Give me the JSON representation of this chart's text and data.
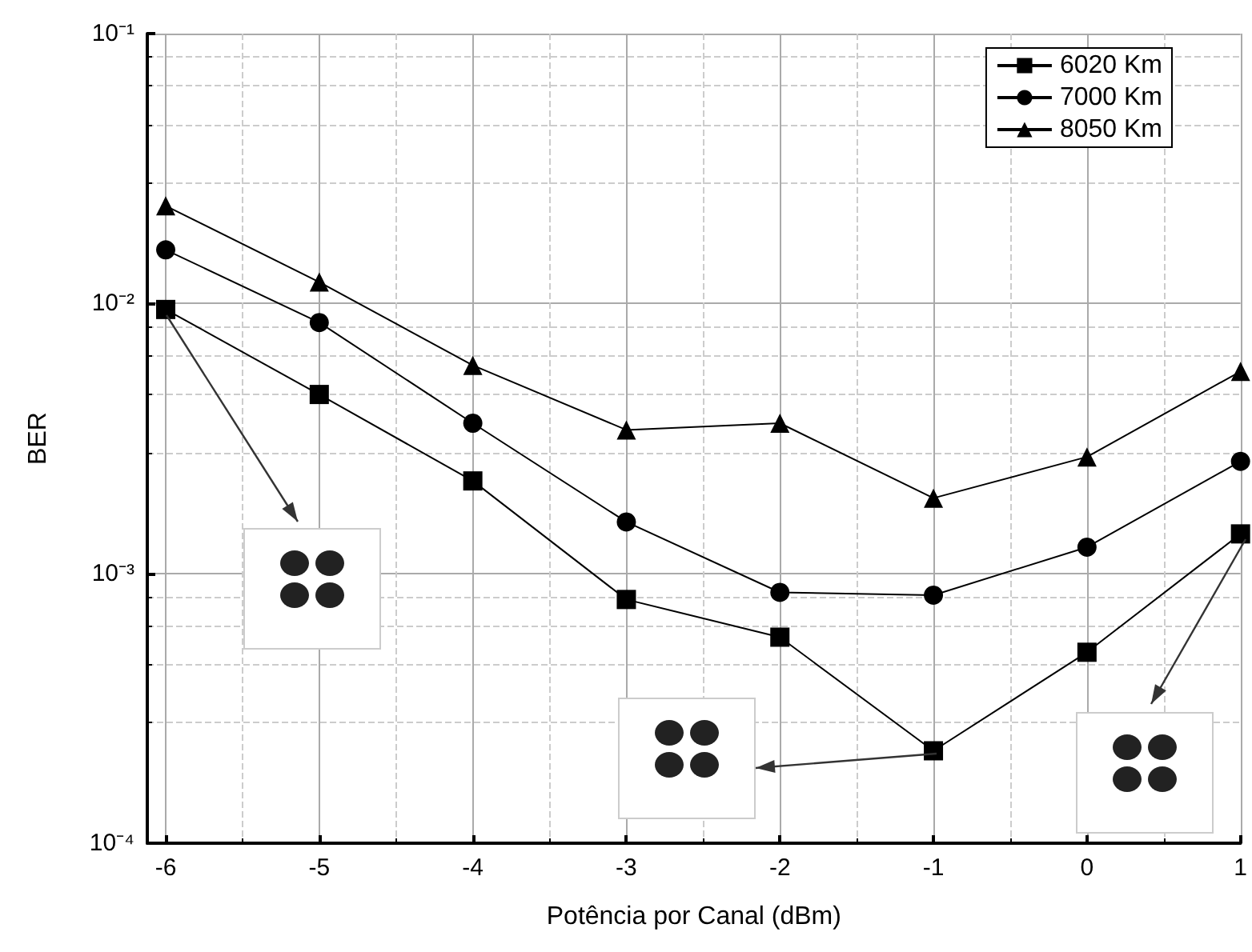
{
  "chart_data": {
    "type": "line",
    "xlabel": "Potência por Canal (dBm)",
    "ylabel": "BER",
    "x": [
      -6,
      -5,
      -4,
      -3,
      -2,
      -1,
      0,
      1
    ],
    "series": [
      {
        "name": "6020 Km",
        "color": "#000000",
        "marker": "square",
        "values": [
          0.0095,
          0.0046,
          0.0022,
          0.0008,
          0.00058,
          0.00022,
          0.00051,
          0.0014
        ]
      },
      {
        "name": "7000 Km",
        "color": "#000000",
        "marker": "circle",
        "values": [
          0.0158,
          0.0085,
          0.0036,
          0.00155,
          0.00085,
          0.00083,
          0.00125,
          0.0026
        ]
      },
      {
        "name": "8050 Km",
        "color": "#000000",
        "marker": "triangle",
        "values": [
          0.023,
          0.012,
          0.0059,
          0.0034,
          0.0036,
          0.0019,
          0.0027,
          0.0056
        ]
      }
    ],
    "log": "y",
    "xlim": [
      -6.12,
      1
    ],
    "xticks": [
      -6,
      -5,
      -4,
      -3,
      -2,
      -1,
      0,
      1
    ],
    "ylim": [
      0.0001,
      0.1
    ],
    "yticks": [
      {
        "value": 0.0001,
        "label": "10⁻⁴"
      },
      {
        "value": 0.001,
        "label": "10⁻³"
      },
      {
        "value": 0.01,
        "label": "10⁻²"
      },
      {
        "value": 0.1,
        "label": "10⁻¹"
      }
    ],
    "grid": true,
    "legend": "top right",
    "line_style": "solid"
  }
}
